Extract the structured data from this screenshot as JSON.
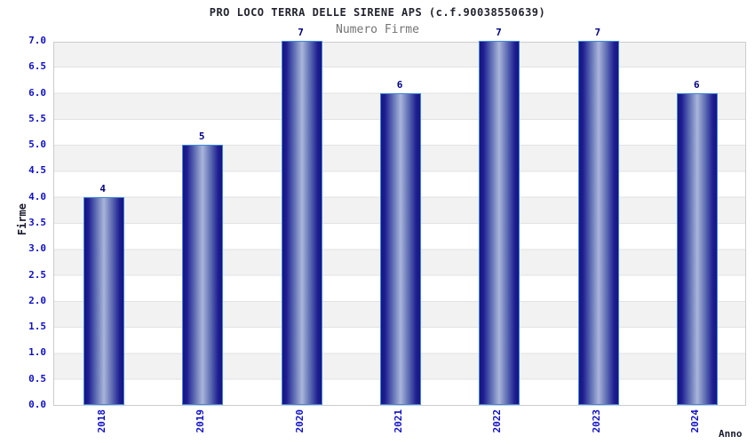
{
  "chart_data": {
    "type": "bar",
    "title": "PRO LOCO TERRA DELLE SIRENE APS (c.f.90038550639)",
    "subtitle": "Numero Firme",
    "xlabel": "Anno",
    "ylabel": "Firme",
    "categories": [
      "2018",
      "2019",
      "2020",
      "2021",
      "2022",
      "2023",
      "2024"
    ],
    "values": [
      4,
      5,
      7,
      6,
      7,
      7,
      6
    ],
    "ylim": [
      0.0,
      7.0
    ],
    "ytick_step": 0.5,
    "ytick_labels": [
      "0.0",
      "0.5",
      "1.0",
      "1.5",
      "2.0",
      "2.5",
      "3.0",
      "3.5",
      "4.0",
      "4.5",
      "5.0",
      "5.5",
      "6.0",
      "6.5",
      "7.0"
    ],
    "bar_value_labels": [
      "4",
      "5",
      "7",
      "6",
      "7",
      "7",
      "6"
    ],
    "grid": "horizontal-bands-alternating",
    "legend": "none",
    "colors": {
      "bar_dark": "#15157f",
      "bar_mid": "#5f6eb4",
      "bar_light": "#a9b5da",
      "bar_outline": "#3f86e0",
      "tick_label": "#0f0fcc",
      "value_label": "#00008b",
      "title": "#23232f",
      "subtitle": "#747474",
      "axis_label": "#1a1a2e",
      "band_gray": "#f2f2f2",
      "plot_border": "#cccccc"
    }
  }
}
